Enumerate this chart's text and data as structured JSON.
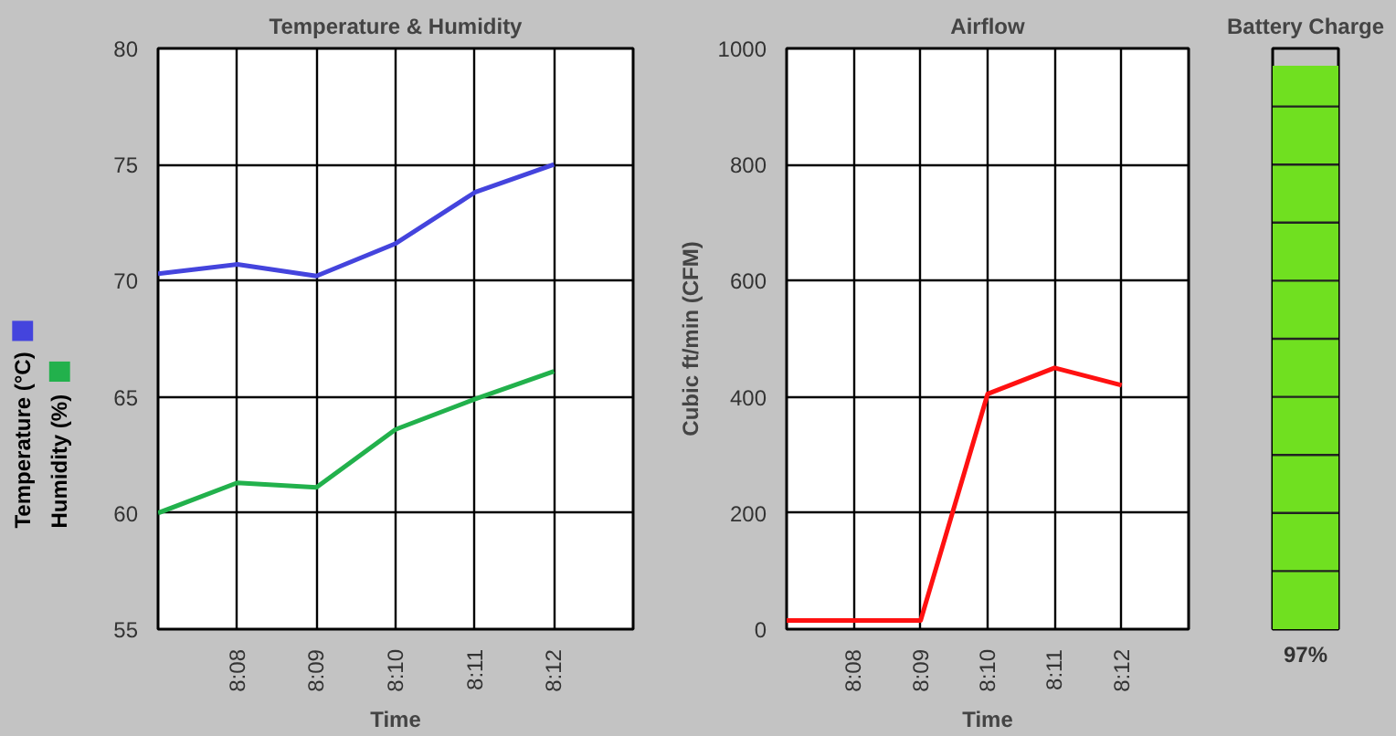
{
  "chart_data": [
    {
      "type": "line",
      "title": "Temperature & Humidity",
      "xlabel": "Time",
      "categories": [
        null,
        "8:08",
        "8:09",
        "8:10",
        "8:11",
        "8:12"
      ],
      "ylim": [
        55,
        80
      ],
      "yticks": [
        55,
        60,
        65,
        70,
        75,
        80
      ],
      "grid": true,
      "legend": "left",
      "series": [
        {
          "name": "Temperature (°C)",
          "color": "#4444dd",
          "values": [
            70.3,
            70.7,
            70.2,
            71.6,
            73.8,
            75.0
          ]
        },
        {
          "name": "Humidity (%)",
          "color": "#22b14c",
          "values": [
            60.0,
            61.3,
            61.1,
            63.6,
            64.9,
            66.1
          ]
        }
      ]
    },
    {
      "type": "line",
      "title": "Airflow",
      "xlabel": "Time",
      "ylabel": "Cubic ft/min (CFM)",
      "categories": [
        null,
        "8:08",
        "8:09",
        "8:10",
        "8:11",
        "8:12"
      ],
      "ylim": [
        0,
        1000
      ],
      "yticks": [
        0,
        200,
        400,
        600,
        800,
        1000
      ],
      "grid": true,
      "series": [
        {
          "color": "#ff1111",
          "values": [
            15,
            15,
            15,
            405,
            450,
            420
          ]
        }
      ]
    },
    {
      "type": "other",
      "title": "Battery Charge",
      "values": [
        97
      ],
      "value_labels": [
        "97%"
      ],
      "color": "#70e020"
    }
  ]
}
